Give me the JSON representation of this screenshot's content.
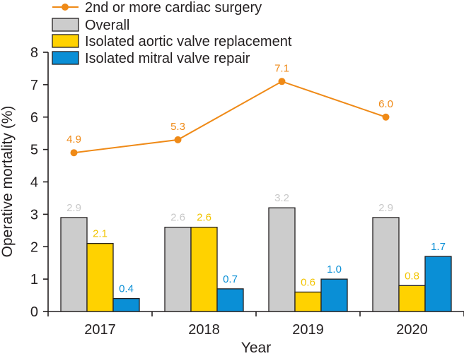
{
  "chart_data": {
    "type": "bar+line",
    "categories": [
      "2017",
      "2018",
      "2019",
      "2020"
    ],
    "series": [
      {
        "name": "Overall",
        "kind": "bar",
        "color": "#cccccc",
        "label_color": "#c8c8c8",
        "values": [
          2.9,
          2.6,
          3.2,
          2.9
        ],
        "labels": [
          "2.9",
          "2.6",
          "3.2",
          "2.9"
        ]
      },
      {
        "name": "Isolated aortic valve replacement",
        "kind": "bar",
        "color": "#ffd200",
        "label_color": "#f2c400",
        "values": [
          2.1,
          2.6,
          0.6,
          0.8
        ],
        "labels": [
          "2.1",
          "2.6",
          "0.6",
          "0.8"
        ]
      },
      {
        "name": "Isolated mitral valve repair",
        "kind": "bar",
        "color": "#0a8fd6",
        "label_color": "#0a8fd6",
        "values": [
          0.4,
          0.7,
          1.0,
          1.7
        ],
        "labels": [
          "0.4",
          "0.7",
          "1.0",
          "1.7"
        ]
      },
      {
        "name": "2nd or more cardiac surgery",
        "kind": "line",
        "color": "#ef8a17",
        "label_color": "#ef8a17",
        "values": [
          4.9,
          5.3,
          7.1,
          6.0
        ],
        "labels": [
          "4.9",
          "5.3",
          "7.1",
          "6.0"
        ]
      }
    ],
    "legend": [
      {
        "name": "2nd or more cardiac surgery",
        "kind": "line",
        "color": "#ef8a17"
      },
      {
        "name": "Overall",
        "kind": "bar",
        "color": "#cccccc"
      },
      {
        "name": "Isolated aortic valve replacement",
        "kind": "bar",
        "color": "#ffd200"
      },
      {
        "name": "Isolated mitral valve repair",
        "kind": "bar",
        "color": "#0a8fd6"
      }
    ],
    "y_ticks": [
      "0",
      "1",
      "2",
      "3",
      "4",
      "5",
      "6",
      "7",
      "8"
    ],
    "ylim": [
      0,
      8
    ],
    "xlabel": "Year",
    "ylabel": "Operative mortality (%)",
    "legend_position": "top-left",
    "grid": false
  }
}
